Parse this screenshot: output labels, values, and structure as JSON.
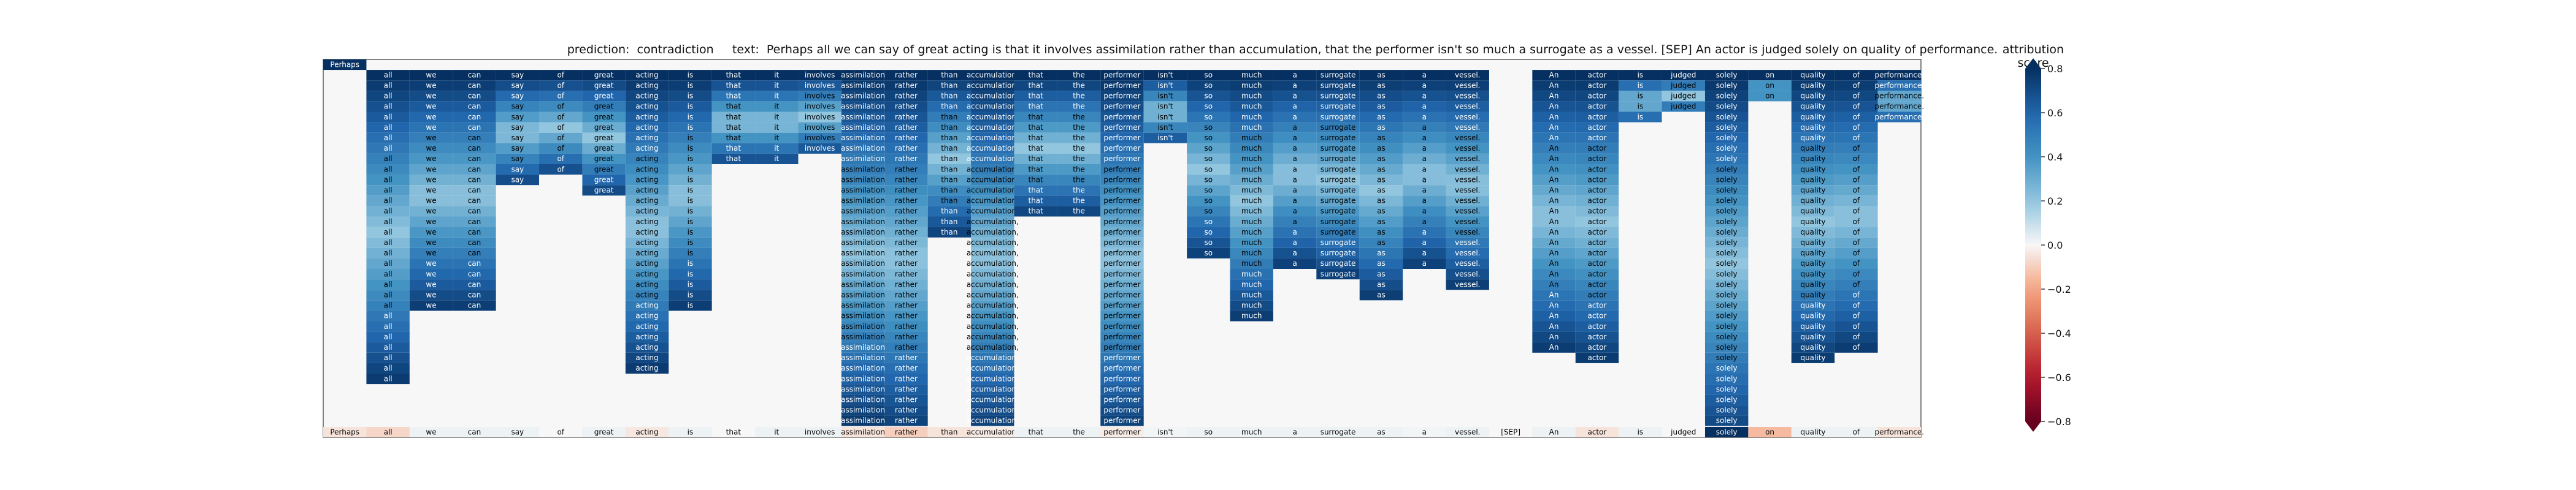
{
  "chart_data": {
    "type": "heatmap",
    "title": "prediction:  contradiction     text:  Perhaps all we can say of great acting is that it involves assimilation rather than accumulation, that the performer isn't so much a surrogate as a vessel. [SEP] An actor is judged solely on quality of performance.",
    "tokens": [
      "Perhaps",
      "all",
      "we",
      "can",
      "say",
      "of",
      "great",
      "acting",
      "is",
      "that",
      "it",
      "involves",
      "assimilation",
      "rather",
      "than",
      "accumulation,",
      "that",
      "the",
      "performer",
      "isn't",
      "so",
      "much",
      "a",
      "surrogate",
      "as",
      "a",
      "vessel.",
      "[SEP]",
      "An",
      "actor",
      "is",
      "judged",
      "solely",
      "on",
      "quality",
      "of",
      "performance."
    ],
    "column_tops": [
      0,
      1,
      1,
      1,
      1,
      1,
      1,
      1,
      1,
      1,
      1,
      1,
      1,
      1,
      1,
      1,
      1,
      1,
      1,
      1,
      1,
      1,
      1,
      1,
      1,
      1,
      1,
      100,
      1,
      1,
      1,
      1,
      1,
      1,
      1,
      1,
      1
    ],
    "column_lengths": [
      1,
      30,
      23,
      23,
      11,
      10,
      12,
      29,
      23,
      9,
      9,
      8,
      34,
      35,
      16,
      35,
      14,
      14,
      35,
      7,
      18,
      24,
      19,
      20,
      22,
      19,
      21,
      0,
      27,
      28,
      5,
      4,
      36,
      3,
      28,
      27,
      5
    ],
    "attribution": [
      -0.05,
      -0.08,
      0.02,
      0.02,
      0.02,
      0.0,
      0.02,
      -0.04,
      0.02,
      0.0,
      0.02,
      0.02,
      -0.05,
      -0.1,
      -0.05,
      -0.03,
      0.02,
      0.02,
      -0.03,
      0.01,
      0.02,
      0.02,
      0.02,
      0.02,
      0.02,
      0.01,
      0.02,
      0.0,
      0.02,
      -0.05,
      0.02,
      0.0,
      0.85,
      -0.15,
      0.02,
      0.02,
      -0.05
    ],
    "colorbar": {
      "label": "attribution score",
      "range": [
        -0.8,
        0.8
      ],
      "ticks": [
        "0.8",
        "0.6",
        "0.4",
        "0.2",
        "0.0",
        "−0.2",
        "−0.4",
        "−0.6",
        "−0.8"
      ],
      "colormap": "RdBu"
    }
  }
}
